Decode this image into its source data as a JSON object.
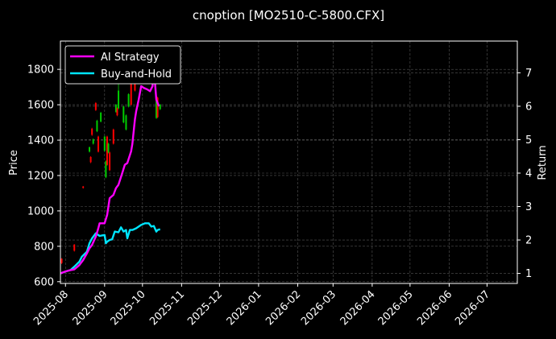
{
  "chart_data": {
    "type": "line",
    "title": "cnoption [MO2510-C-5800.CFX]",
    "ylabel": "Price",
    "y2label": "Return",
    "ylim": [
      590,
      1960
    ],
    "y2lim": [
      0.7,
      7.95
    ],
    "xlim": [
      "2025-07-28",
      "2026-07-25"
    ],
    "yticks": [
      "600",
      "800",
      "1000",
      "1200",
      "1400",
      "1600",
      "1800"
    ],
    "y2ticks": [
      "1",
      "2",
      "3",
      "4",
      "5",
      "6",
      "7"
    ],
    "xticks": [
      "2025-08",
      "2025-09",
      "2025-10",
      "2025-11",
      "2025-12",
      "2026-01",
      "2026-02",
      "2026-03",
      "2026-04",
      "2026-05",
      "2026-06",
      "2026-07"
    ],
    "grid": true,
    "legend_position": "top-left",
    "series": [
      {
        "name": "AI Strategy",
        "axis": "right",
        "color": "#ff00ff",
        "points": [
          [
            "2025-07-28",
            1.0
          ],
          [
            "2025-08-01",
            1.06
          ],
          [
            "2025-08-05",
            1.1
          ],
          [
            "2025-08-08",
            1.12
          ],
          [
            "2025-08-12",
            1.25
          ],
          [
            "2025-08-15",
            1.4
          ],
          [
            "2025-08-18",
            1.6
          ],
          [
            "2025-08-20",
            1.75
          ],
          [
            "2025-08-22",
            1.85
          ],
          [
            "2025-08-25",
            2.1
          ],
          [
            "2025-08-27",
            2.35
          ],
          [
            "2025-08-28",
            2.5
          ],
          [
            "2025-09-01",
            2.5
          ],
          [
            "2025-09-03",
            2.75
          ],
          [
            "2025-09-05",
            3.25
          ],
          [
            "2025-09-08",
            3.35
          ],
          [
            "2025-09-10",
            3.55
          ],
          [
            "2025-09-12",
            3.65
          ],
          [
            "2025-09-15",
            4.0
          ],
          [
            "2025-09-17",
            4.25
          ],
          [
            "2025-09-19",
            4.3
          ],
          [
            "2025-09-22",
            4.65
          ],
          [
            "2025-09-23",
            4.88
          ],
          [
            "2025-09-25",
            5.6
          ],
          [
            "2025-09-26",
            5.85
          ],
          [
            "2025-09-28",
            6.2
          ],
          [
            "2025-09-30",
            6.6
          ],
          [
            "2025-10-02",
            6.55
          ],
          [
            "2025-10-05",
            6.5
          ],
          [
            "2025-10-07",
            6.45
          ],
          [
            "2025-10-09",
            6.6
          ],
          [
            "2025-10-10",
            7.15
          ],
          [
            "2025-10-12",
            6.2
          ],
          [
            "2025-10-14",
            6.0
          ]
        ]
      },
      {
        "name": "Buy-and-Hold",
        "axis": "right",
        "color": "#00e5ff",
        "points": [
          [
            "2025-07-28",
            1.0
          ],
          [
            "2025-08-01",
            1.06
          ],
          [
            "2025-08-05",
            1.1
          ],
          [
            "2025-08-08",
            1.2
          ],
          [
            "2025-08-12",
            1.35
          ],
          [
            "2025-08-14",
            1.5
          ],
          [
            "2025-08-18",
            1.65
          ],
          [
            "2025-08-20",
            1.9
          ],
          [
            "2025-08-22",
            2.05
          ],
          [
            "2025-08-25",
            2.2
          ],
          [
            "2025-08-28",
            2.12
          ],
          [
            "2025-09-01",
            2.15
          ],
          [
            "2025-09-02",
            1.9
          ],
          [
            "2025-09-03",
            1.95
          ],
          [
            "2025-09-05",
            2.0
          ],
          [
            "2025-09-07",
            2.02
          ],
          [
            "2025-09-09",
            2.25
          ],
          [
            "2025-09-12",
            2.23
          ],
          [
            "2025-09-14",
            2.38
          ],
          [
            "2025-09-16",
            2.25
          ],
          [
            "2025-09-18",
            2.3
          ],
          [
            "2025-09-19",
            2.05
          ],
          [
            "2025-09-21",
            2.3
          ],
          [
            "2025-09-23",
            2.3
          ],
          [
            "2025-09-26",
            2.35
          ],
          [
            "2025-09-30",
            2.45
          ],
          [
            "2025-10-03",
            2.5
          ],
          [
            "2025-10-06",
            2.5
          ],
          [
            "2025-10-08",
            2.4
          ],
          [
            "2025-10-10",
            2.42
          ],
          [
            "2025-10-12",
            2.25
          ],
          [
            "2025-10-13",
            2.3
          ],
          [
            "2025-10-15",
            2.32
          ]
        ]
      }
    ],
    "candles": [
      {
        "date": "2025-07-29",
        "open": 705,
        "close": 730,
        "low": 700,
        "high": 733,
        "color": "#ff0000"
      },
      {
        "date": "2025-08-08",
        "open": 775,
        "close": 810,
        "low": 770,
        "high": 812,
        "color": "#ff0000"
      },
      {
        "date": "2025-08-15",
        "open": 1130,
        "close": 1138,
        "low": 1126,
        "high": 1141,
        "color": "#ff0000"
      },
      {
        "date": "2025-08-20",
        "open": 1335,
        "close": 1360,
        "low": 1330,
        "high": 1364,
        "color": "#00cc00"
      },
      {
        "date": "2025-08-21",
        "open": 1275,
        "close": 1305,
        "low": 1270,
        "high": 1309,
        "color": "#ff0000"
      },
      {
        "date": "2025-08-22",
        "open": 1430,
        "close": 1465,
        "low": 1424,
        "high": 1470,
        "color": "#ff0000"
      },
      {
        "date": "2025-08-23",
        "open": 1380,
        "close": 1405,
        "low": 1375,
        "high": 1410,
        "color": "#00cc00"
      },
      {
        "date": "2025-08-25",
        "open": 1570,
        "close": 1610,
        "low": 1565,
        "high": 1615,
        "color": "#ff0000"
      },
      {
        "date": "2025-08-26",
        "open": 1450,
        "close": 1510,
        "low": 1445,
        "high": 1515,
        "color": "#00cc00"
      },
      {
        "date": "2025-08-27",
        "open": 1335,
        "close": 1420,
        "low": 1330,
        "high": 1425,
        "color": "#ff0000"
      },
      {
        "date": "2025-08-29",
        "open": 1505,
        "close": 1555,
        "low": 1500,
        "high": 1560,
        "color": "#00cc00"
      },
      {
        "date": "2025-09-01",
        "open": 1340,
        "close": 1420,
        "low": 1335,
        "high": 1425,
        "color": "#00cc00"
      },
      {
        "date": "2025-09-02",
        "open": 1190,
        "close": 1280,
        "low": 1185,
        "high": 1285,
        "color": "#00cc00"
      },
      {
        "date": "2025-09-03",
        "open": 1260,
        "close": 1420,
        "low": 1255,
        "high": 1425,
        "color": "#ff0000"
      },
      {
        "date": "2025-09-04",
        "open": 1330,
        "close": 1380,
        "low": 1325,
        "high": 1385,
        "color": "#00cc00"
      },
      {
        "date": "2025-09-05",
        "open": 1230,
        "close": 1330,
        "low": 1225,
        "high": 1335,
        "color": "#ff0000"
      },
      {
        "date": "2025-09-08",
        "open": 1380,
        "close": 1460,
        "low": 1375,
        "high": 1465,
        "color": "#ff0000"
      },
      {
        "date": "2025-09-10",
        "open": 1560,
        "close": 1600,
        "low": 1555,
        "high": 1605,
        "color": "#00cc00"
      },
      {
        "date": "2025-09-11",
        "open": 1540,
        "close": 1580,
        "low": 1535,
        "high": 1585,
        "color": "#ff0000"
      },
      {
        "date": "2025-09-12",
        "open": 1580,
        "close": 1680,
        "low": 1575,
        "high": 1720,
        "color": "#00cc00"
      },
      {
        "date": "2025-09-16",
        "open": 1500,
        "close": 1590,
        "low": 1495,
        "high": 1595,
        "color": "#00cc00"
      },
      {
        "date": "2025-09-18",
        "open": 1460,
        "close": 1540,
        "low": 1455,
        "high": 1545,
        "color": "#00cc00"
      },
      {
        "date": "2025-09-20",
        "open": 1590,
        "close": 1660,
        "low": 1585,
        "high": 1665,
        "color": "#00cc00"
      },
      {
        "date": "2025-09-22",
        "open": 1600,
        "close": 1720,
        "low": 1595,
        "high": 1725,
        "color": "#ff0000"
      },
      {
        "date": "2025-09-25",
        "open": 1680,
        "close": 1760,
        "low": 1675,
        "high": 1765,
        "color": "#ff0000"
      },
      {
        "date": "2025-10-12",
        "open": 1525,
        "close": 1630,
        "low": 1520,
        "high": 1635,
        "color": "#00cc00"
      },
      {
        "date": "2025-10-13",
        "open": 1530,
        "close": 1640,
        "low": 1525,
        "high": 1645,
        "color": "#ff0000"
      },
      {
        "date": "2025-10-15",
        "open": 1575,
        "close": 1600,
        "low": 1570,
        "high": 1605,
        "color": "#00cc00"
      }
    ]
  }
}
